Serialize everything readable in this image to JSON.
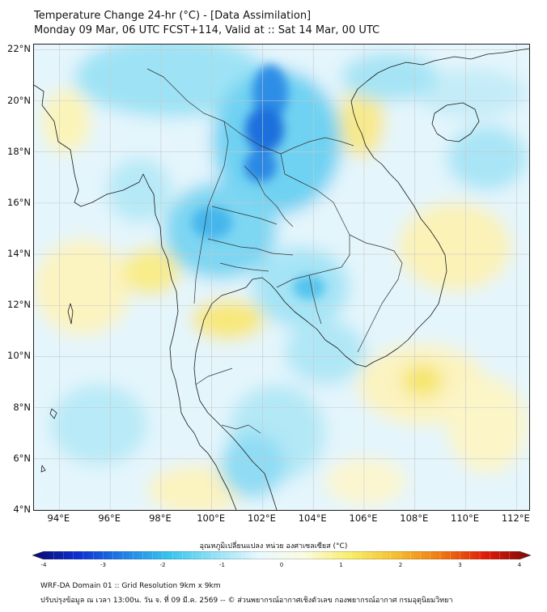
{
  "header": {
    "title_line1": "Temperature Change 24-hr (°C) - [Data Assimilation]",
    "title_line2": "Monday 09 Mar, 06 UTC FCST+114, Valid at :: Sat 14 Mar, 00 UTC"
  },
  "map": {
    "lat_labels": [
      "22°N",
      "20°N",
      "18°N",
      "16°N",
      "14°N",
      "12°N",
      "10°N",
      "8°N",
      "6°N",
      "4°N"
    ],
    "lon_labels": [
      "94°E",
      "96°E",
      "98°E",
      "100°E",
      "102°E",
      "104°E",
      "106°E",
      "108°E",
      "110°E",
      "112°E"
    ],
    "lat_values": [
      22,
      20,
      18,
      16,
      14,
      12,
      10,
      8,
      6,
      4
    ],
    "lon_values": [
      94,
      96,
      98,
      100,
      102,
      104,
      106,
      108,
      110,
      112
    ],
    "extent": {
      "lon_min": 93.0,
      "lon_max": 112.5,
      "lat_min": 4.0,
      "lat_max": 22.2
    },
    "colors": {
      "grid": "#c8c8c8",
      "coast": "#1a1a1a",
      "border": "#333333"
    }
  },
  "colorbar": {
    "title": "อุณหภูมิเปลี่ยนแปลง หน่วย องศาเซลเซียส (°C)",
    "tick_labels": [
      "-4",
      "-3",
      "-2",
      "-1",
      "0",
      "1",
      "2",
      "3",
      "4"
    ],
    "min": -4,
    "max": 4,
    "colors": [
      "#0a0a6e",
      "#0c2fd0",
      "#1f7fe8",
      "#35c4ee",
      "#8ee2f6",
      "#e8f8ff",
      "#fbfbe0",
      "#f8ee6a",
      "#f6c030",
      "#f07a10",
      "#e21a08",
      "#7a0a0a"
    ]
  },
  "footer": {
    "line1": "WRF-DA Domain 01 :: Grid Resolution 9km x 9km",
    "line2": "ปรับปรุงข้อมูล ณ เวลา 13:00น. วัน จ. ที่ 09 มี.ค. 2569 -- © ส่วนพยากรณ์อากาศเชิงตัวเลข กองพยากรณ์อากาศ กรมอุตุนิยมวิทยา"
  }
}
